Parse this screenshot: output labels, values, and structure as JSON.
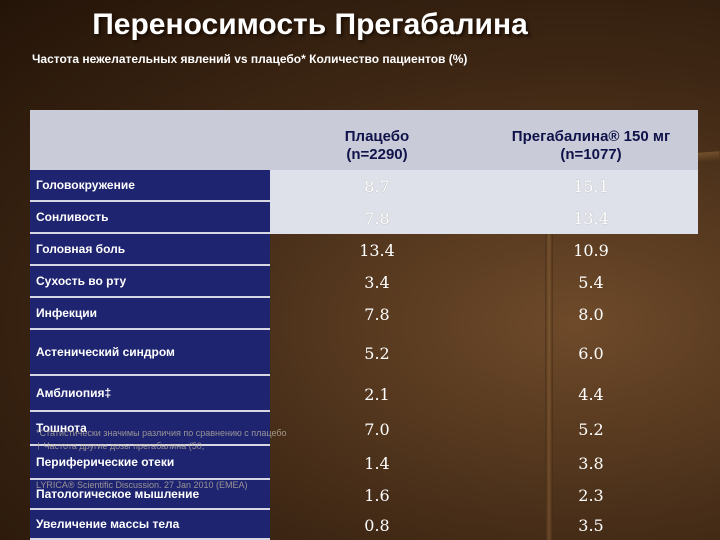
{
  "title": "Переносимость Прегабалина",
  "subtitle": "Частота нежелательных явлений vs плацебо* Количество пациентов (%)",
  "table": {
    "headers": [
      {
        "line1": "Плацебо",
        "line2": "(n=2290)"
      },
      {
        "line1": "Прегабалина® 150 мг",
        "line2": "(n=1077)"
      }
    ],
    "rows": [
      {
        "label": "Головокружение",
        "placebo": "8.7",
        "pregabalin": "15.1"
      },
      {
        "label": "Сонливость",
        "placebo": "7.8",
        "pregabalin": "13.4"
      },
      {
        "label": "Головная боль",
        "placebo": "13.4",
        "pregabalin": "10.9"
      },
      {
        "label": "Сухость во рту",
        "placebo": "3.4",
        "pregabalin": "5.4"
      },
      {
        "label": "Инфекции",
        "placebo": "7.8",
        "pregabalin": "8.0"
      },
      {
        "label": "Астенический синдром",
        "placebo": "5.2",
        "pregabalin": "6.0"
      },
      {
        "label": "Амблиопия‡",
        "placebo": "2.1",
        "pregabalin": "4.4"
      },
      {
        "label": "Тошнота",
        "placebo": "7.0",
        "pregabalin": "5.2"
      },
      {
        "label": "Периферические отеки",
        "placebo": "1.4",
        "pregabalin": "3.8"
      },
      {
        "label": "Патологическое мышление",
        "placebo": "1.6",
        "pregabalin": "2.3"
      },
      {
        "label": "Увеличение массы тела",
        "placebo": "0.8",
        "pregabalin": "3.5"
      }
    ]
  },
  "footnotes": {
    "line1": "*Статистически значимы различия по сравнению с плацебо",
    "line2": "† Частота другие дозы прегабалина (50,",
    "line3": "LYRICA® Scientific Discussion. 27 Jan 2010 (EMEA)"
  },
  "colors": {
    "header_bg": "#c9cbd8",
    "label_bg": "#1e2470",
    "light_row_bg": "#dfe1ea",
    "title_color": "#ffffff"
  }
}
